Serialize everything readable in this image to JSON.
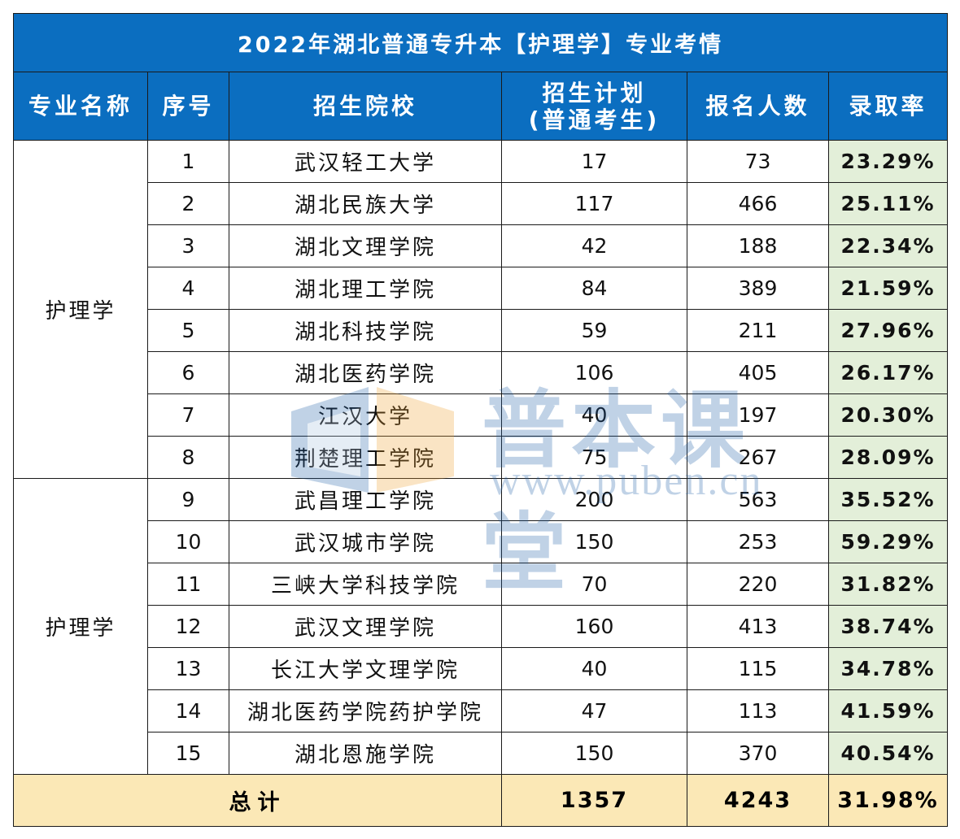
{
  "title": "2022年湖北普通专升本【护理学】专业考情",
  "headers": {
    "major": "专业名称",
    "index": "序号",
    "school": "招生院校",
    "plan_line1": "招生计划",
    "plan_line2": "(普通考生)",
    "applicants": "报名人数",
    "rate": "录取率"
  },
  "groups": [
    {
      "major": "护理学",
      "rows": [
        {
          "index": "1",
          "school": "武汉轻工大学",
          "plan": "17",
          "applicants": "73",
          "rate": "23.29%"
        },
        {
          "index": "2",
          "school": "湖北民族大学",
          "plan": "117",
          "applicants": "466",
          "rate": "25.11%"
        },
        {
          "index": "3",
          "school": "湖北文理学院",
          "plan": "42",
          "applicants": "188",
          "rate": "22.34%"
        },
        {
          "index": "4",
          "school": "湖北理工学院",
          "plan": "84",
          "applicants": "389",
          "rate": "21.59%"
        },
        {
          "index": "5",
          "school": "湖北科技学院",
          "plan": "59",
          "applicants": "211",
          "rate": "27.96%"
        },
        {
          "index": "6",
          "school": "湖北医药学院",
          "plan": "106",
          "applicants": "405",
          "rate": "26.17%"
        },
        {
          "index": "7",
          "school": "江汉大学",
          "plan": "40",
          "applicants": "197",
          "rate": "20.30%"
        },
        {
          "index": "8",
          "school": "荆楚理工学院",
          "plan": "75",
          "applicants": "267",
          "rate": "28.09%"
        }
      ]
    },
    {
      "major": "护理学",
      "rows": [
        {
          "index": "9",
          "school": "武昌理工学院",
          "plan": "200",
          "applicants": "563",
          "rate": "35.52%"
        },
        {
          "index": "10",
          "school": "武汉城市学院",
          "plan": "150",
          "applicants": "253",
          "rate": "59.29%"
        },
        {
          "index": "11",
          "school": "三峡大学科技学院",
          "plan": "70",
          "applicants": "220",
          "rate": "31.82%"
        },
        {
          "index": "12",
          "school": "武汉文理学院",
          "plan": "160",
          "applicants": "413",
          "rate": "38.74%"
        },
        {
          "index": "13",
          "school": "长江大学文理学院",
          "plan": "40",
          "applicants": "115",
          "rate": "34.78%"
        },
        {
          "index": "14",
          "school": "湖北医药学院药护学院",
          "plan": "47",
          "applicants": "113",
          "rate": "41.59%"
        },
        {
          "index": "15",
          "school": "湖北恩施学院",
          "plan": "150",
          "applicants": "370",
          "rate": "40.54%"
        }
      ]
    }
  ],
  "total": {
    "label": "总计",
    "plan": "1357",
    "applicants": "4243",
    "rate": "31.98%"
  },
  "watermark": {
    "brand": "普本课堂",
    "url": "www.puben.cn"
  },
  "colors": {
    "header_bg": "#0b6ec0",
    "rate_bg": "#e3efd9",
    "total_bg": "#fbe8b6",
    "watermark": "#1f5fa8"
  }
}
